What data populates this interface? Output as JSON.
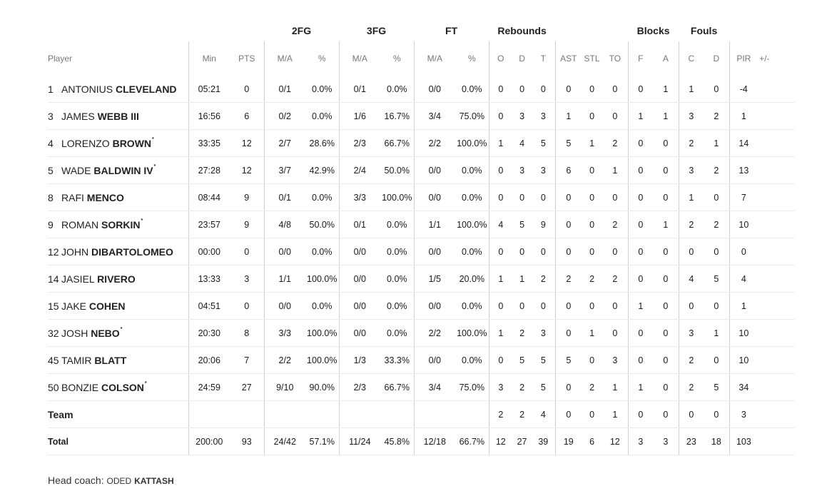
{
  "group_headers": {
    "fg2": "2FG",
    "fg3": "3FG",
    "ft": "FT",
    "rebounds": "Rebounds",
    "blocks": "Blocks",
    "fouls": "Fouls"
  },
  "columns": {
    "player": "Player",
    "min": "Min",
    "pts": "PTS",
    "fg2_ma": "M/A",
    "fg2_pct": "%",
    "fg3_ma": "M/A",
    "fg3_pct": "%",
    "ft_ma": "M/A",
    "ft_pct": "%",
    "reb_o": "O",
    "reb_d": "D",
    "reb_t": "T",
    "ast": "AST",
    "stl": "STL",
    "to": "TO",
    "blk_f": "F",
    "blk_a": "A",
    "foul_c": "C",
    "foul_d": "D",
    "pir": "PIR",
    "pm": "+/-"
  },
  "players": [
    {
      "num": "1",
      "first": "ANTONIUS",
      "last": "CLEVELAND",
      "starter": "",
      "min": "05:21",
      "pts": "0",
      "fg2_ma": "0/1",
      "fg2_pct": "0.0%",
      "fg3_ma": "0/1",
      "fg3_pct": "0.0%",
      "ft_ma": "0/0",
      "ft_pct": "0.0%",
      "reb_o": "0",
      "reb_d": "0",
      "reb_t": "0",
      "ast": "0",
      "stl": "0",
      "to": "0",
      "blk_f": "0",
      "blk_a": "1",
      "foul_c": "1",
      "foul_d": "0",
      "pir": "-4",
      "pm": ""
    },
    {
      "num": "3",
      "first": "JAMES",
      "last": "WEBB III",
      "starter": "",
      "min": "16:56",
      "pts": "6",
      "fg2_ma": "0/2",
      "fg2_pct": "0.0%",
      "fg3_ma": "1/6",
      "fg3_pct": "16.7%",
      "ft_ma": "3/4",
      "ft_pct": "75.0%",
      "reb_o": "0",
      "reb_d": "3",
      "reb_t": "3",
      "ast": "1",
      "stl": "0",
      "to": "0",
      "blk_f": "1",
      "blk_a": "1",
      "foul_c": "3",
      "foul_d": "2",
      "pir": "1",
      "pm": ""
    },
    {
      "num": "4",
      "first": "LORENZO",
      "last": "BROWN",
      "starter": "*",
      "min": "33:35",
      "pts": "12",
      "fg2_ma": "2/7",
      "fg2_pct": "28.6%",
      "fg3_ma": "2/3",
      "fg3_pct": "66.7%",
      "ft_ma": "2/2",
      "ft_pct": "100.0%",
      "reb_o": "1",
      "reb_d": "4",
      "reb_t": "5",
      "ast": "5",
      "stl": "1",
      "to": "2",
      "blk_f": "0",
      "blk_a": "0",
      "foul_c": "2",
      "foul_d": "1",
      "pir": "14",
      "pm": ""
    },
    {
      "num": "5",
      "first": "WADE",
      "last": "BALDWIN IV",
      "starter": "*",
      "min": "27:28",
      "pts": "12",
      "fg2_ma": "3/7",
      "fg2_pct": "42.9%",
      "fg3_ma": "2/4",
      "fg3_pct": "50.0%",
      "ft_ma": "0/0",
      "ft_pct": "0.0%",
      "reb_o": "0",
      "reb_d": "3",
      "reb_t": "3",
      "ast": "6",
      "stl": "0",
      "to": "1",
      "blk_f": "0",
      "blk_a": "0",
      "foul_c": "3",
      "foul_d": "2",
      "pir": "13",
      "pm": ""
    },
    {
      "num": "8",
      "first": "RAFI",
      "last": "MENCO",
      "starter": "",
      "min": "08:44",
      "pts": "9",
      "fg2_ma": "0/1",
      "fg2_pct": "0.0%",
      "fg3_ma": "3/3",
      "fg3_pct": "100.0%",
      "ft_ma": "0/0",
      "ft_pct": "0.0%",
      "reb_o": "0",
      "reb_d": "0",
      "reb_t": "0",
      "ast": "0",
      "stl": "0",
      "to": "0",
      "blk_f": "0",
      "blk_a": "0",
      "foul_c": "1",
      "foul_d": "0",
      "pir": "7",
      "pm": ""
    },
    {
      "num": "9",
      "first": "ROMAN",
      "last": "SORKIN",
      "starter": "*",
      "min": "23:57",
      "pts": "9",
      "fg2_ma": "4/8",
      "fg2_pct": "50.0%",
      "fg3_ma": "0/1",
      "fg3_pct": "0.0%",
      "ft_ma": "1/1",
      "ft_pct": "100.0%",
      "reb_o": "4",
      "reb_d": "5",
      "reb_t": "9",
      "ast": "0",
      "stl": "0",
      "to": "2",
      "blk_f": "0",
      "blk_a": "1",
      "foul_c": "2",
      "foul_d": "2",
      "pir": "10",
      "pm": ""
    },
    {
      "num": "12",
      "first": "JOHN",
      "last": "DIBARTOLOMEO",
      "starter": "",
      "min": "00:00",
      "pts": "0",
      "fg2_ma": "0/0",
      "fg2_pct": "0.0%",
      "fg3_ma": "0/0",
      "fg3_pct": "0.0%",
      "ft_ma": "0/0",
      "ft_pct": "0.0%",
      "reb_o": "0",
      "reb_d": "0",
      "reb_t": "0",
      "ast": "0",
      "stl": "0",
      "to": "0",
      "blk_f": "0",
      "blk_a": "0",
      "foul_c": "0",
      "foul_d": "0",
      "pir": "0",
      "pm": ""
    },
    {
      "num": "14",
      "first": "JASIEL",
      "last": "RIVERO",
      "starter": "",
      "min": "13:33",
      "pts": "3",
      "fg2_ma": "1/1",
      "fg2_pct": "100.0%",
      "fg3_ma": "0/0",
      "fg3_pct": "0.0%",
      "ft_ma": "1/5",
      "ft_pct": "20.0%",
      "reb_o": "1",
      "reb_d": "1",
      "reb_t": "2",
      "ast": "2",
      "stl": "2",
      "to": "2",
      "blk_f": "0",
      "blk_a": "0",
      "foul_c": "4",
      "foul_d": "5",
      "pir": "4",
      "pm": ""
    },
    {
      "num": "15",
      "first": "JAKE",
      "last": "COHEN",
      "starter": "",
      "min": "04:51",
      "pts": "0",
      "fg2_ma": "0/0",
      "fg2_pct": "0.0%",
      "fg3_ma": "0/0",
      "fg3_pct": "0.0%",
      "ft_ma": "0/0",
      "ft_pct": "0.0%",
      "reb_o": "0",
      "reb_d": "0",
      "reb_t": "0",
      "ast": "0",
      "stl": "0",
      "to": "0",
      "blk_f": "1",
      "blk_a": "0",
      "foul_c": "0",
      "foul_d": "0",
      "pir": "1",
      "pm": ""
    },
    {
      "num": "32",
      "first": "JOSH",
      "last": "NEBO",
      "starter": "*",
      "min": "20:30",
      "pts": "8",
      "fg2_ma": "3/3",
      "fg2_pct": "100.0%",
      "fg3_ma": "0/0",
      "fg3_pct": "0.0%",
      "ft_ma": "2/2",
      "ft_pct": "100.0%",
      "reb_o": "1",
      "reb_d": "2",
      "reb_t": "3",
      "ast": "0",
      "stl": "1",
      "to": "0",
      "blk_f": "0",
      "blk_a": "0",
      "foul_c": "3",
      "foul_d": "1",
      "pir": "10",
      "pm": ""
    },
    {
      "num": "45",
      "first": "TAMIR",
      "last": "BLATT",
      "starter": "",
      "min": "20:06",
      "pts": "7",
      "fg2_ma": "2/2",
      "fg2_pct": "100.0%",
      "fg3_ma": "1/3",
      "fg3_pct": "33.3%",
      "ft_ma": "0/0",
      "ft_pct": "0.0%",
      "reb_o": "0",
      "reb_d": "5",
      "reb_t": "5",
      "ast": "5",
      "stl": "0",
      "to": "3",
      "blk_f": "0",
      "blk_a": "0",
      "foul_c": "2",
      "foul_d": "0",
      "pir": "10",
      "pm": ""
    },
    {
      "num": "50",
      "first": "BONZIE",
      "last": "COLSON",
      "starter": "*",
      "min": "24:59",
      "pts": "27",
      "fg2_ma": "9/10",
      "fg2_pct": "90.0%",
      "fg3_ma": "2/3",
      "fg3_pct": "66.7%",
      "ft_ma": "3/4",
      "ft_pct": "75.0%",
      "reb_o": "3",
      "reb_d": "2",
      "reb_t": "5",
      "ast": "0",
      "stl": "2",
      "to": "1",
      "blk_f": "1",
      "blk_a": "0",
      "foul_c": "2",
      "foul_d": "5",
      "pir": "34",
      "pm": ""
    }
  ],
  "team_row": {
    "label": "Team",
    "min": "",
    "pts": "",
    "fg2_ma": "",
    "fg2_pct": "",
    "fg3_ma": "",
    "fg3_pct": "",
    "ft_ma": "",
    "ft_pct": "",
    "reb_o": "2",
    "reb_d": "2",
    "reb_t": "4",
    "ast": "0",
    "stl": "0",
    "to": "1",
    "blk_f": "0",
    "blk_a": "0",
    "foul_c": "0",
    "foul_d": "0",
    "pir": "3",
    "pm": ""
  },
  "total_row": {
    "label": "Total",
    "min": "200:00",
    "pts": "93",
    "fg2_ma": "24/42",
    "fg2_pct": "57.1%",
    "fg3_ma": "11/24",
    "fg3_pct": "45.8%",
    "ft_ma": "12/18",
    "ft_pct": "66.7%",
    "reb_o": "12",
    "reb_d": "27",
    "reb_t": "39",
    "ast": "19",
    "stl": "6",
    "to": "12",
    "blk_f": "3",
    "blk_a": "3",
    "foul_c": "23",
    "foul_d": "18",
    "pir": "103",
    "pm": ""
  },
  "coach": {
    "label": "Head coach:",
    "first": "ODED",
    "last": "KATTASH"
  }
}
